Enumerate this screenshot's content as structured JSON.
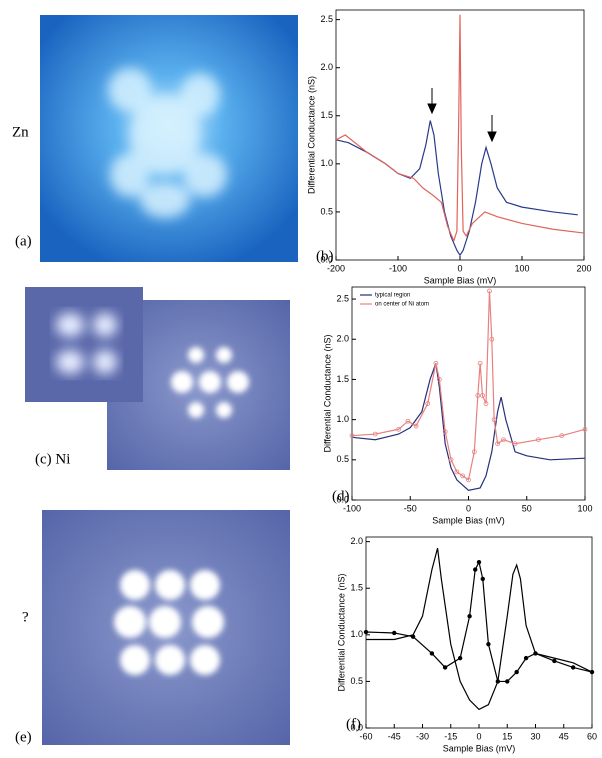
{
  "images": [
    {
      "element": "Zn",
      "label": "(a)"
    },
    {
      "label": "(c) Ni"
    },
    {
      "element": "?",
      "label": "(e)"
    }
  ],
  "chart_data": [
    {
      "type": "line",
      "annotation": "(b)",
      "x_label": "Sample Bias (mV)",
      "y_label": "Differential Conductance (nS)",
      "xlim": [
        -200,
        200
      ],
      "xticks": [
        -200,
        -100,
        0,
        100,
        200
      ],
      "ylim": [
        0,
        2.6
      ],
      "yticks": [
        {
          "value": 0,
          "label": "0.0"
        },
        0.5,
        {
          "value": 1,
          "label": "1.0"
        },
        1.5,
        {
          "value": 2,
          "label": "2.0"
        },
        2.5
      ],
      "series": [
        {
          "color": "#2a3a8a",
          "x": [
            -200,
            -180,
            -150,
            -120,
            -100,
            -80,
            -65,
            -55,
            -48,
            -42,
            -35,
            -25,
            -15,
            -5,
            0,
            5,
            15,
            25,
            35,
            42,
            50,
            60,
            75,
            100,
            150,
            190
          ],
          "values": [
            1.25,
            1.22,
            1.12,
            1.0,
            0.9,
            0.85,
            0.95,
            1.2,
            1.45,
            1.3,
            0.9,
            0.5,
            0.25,
            0.1,
            0.05,
            0.1,
            0.3,
            0.6,
            1.0,
            1.17,
            1.0,
            0.75,
            0.6,
            0.55,
            0.5,
            0.47
          ]
        },
        {
          "color": "#e0645a",
          "x": [
            -200,
            -185,
            -150,
            -120,
            -100,
            -75,
            -60,
            -45,
            -30,
            -20,
            -10,
            -5,
            -2,
            0,
            2,
            5,
            10,
            20,
            40,
            60,
            100,
            150,
            200
          ],
          "values": [
            1.25,
            1.3,
            1.12,
            1.0,
            0.9,
            0.85,
            0.75,
            0.68,
            0.6,
            0.35,
            0.2,
            0.3,
            1.5,
            2.55,
            1.2,
            0.3,
            0.25,
            0.38,
            0.5,
            0.45,
            0.38,
            0.32,
            0.28
          ]
        }
      ]
    },
    {
      "type": "line",
      "annotation": "(d)",
      "x_label": "Sample Bias (mV)",
      "y_label": "Differential Conductance (nS)",
      "legend": "upper left",
      "xlim": [
        -100,
        100
      ],
      "xticks": [
        -100,
        -50,
        0,
        50,
        100
      ],
      "ylim": [
        0,
        2.65
      ],
      "yticks": [
        {
          "value": 0,
          "label": "0.0"
        },
        0.5,
        {
          "value": 1,
          "label": "1.0"
        },
        1.5,
        {
          "value": 2,
          "label": "2.0"
        },
        2.5
      ],
      "series": [
        {
          "name": "typical region",
          "color": "#25307a",
          "x": [
            -100,
            -80,
            -60,
            -50,
            -40,
            -33,
            -28,
            -25,
            -20,
            -15,
            -10,
            0,
            10,
            15,
            20,
            25,
            28,
            32,
            40,
            50,
            70,
            100
          ],
          "values": [
            0.78,
            0.75,
            0.82,
            0.9,
            1.1,
            1.5,
            1.7,
            1.4,
            0.7,
            0.4,
            0.25,
            0.12,
            0.15,
            0.3,
            0.6,
            1.1,
            1.28,
            1.0,
            0.6,
            0.55,
            0.5,
            0.52
          ]
        },
        {
          "name": "on center of Ni atom",
          "color": "#e88080",
          "marker": "open-circle",
          "x": [
            -100,
            -80,
            -60,
            -52,
            -45,
            -35,
            -28,
            -25,
            -20,
            -15,
            -10,
            -5,
            0,
            5,
            8,
            10,
            12,
            15,
            18,
            20,
            22,
            25,
            30,
            40,
            60,
            80,
            100
          ],
          "values": [
            0.8,
            0.82,
            0.88,
            0.98,
            0.92,
            1.2,
            1.7,
            1.5,
            0.85,
            0.5,
            0.35,
            0.3,
            0.25,
            0.6,
            1.3,
            1.7,
            1.3,
            1.2,
            2.6,
            2.0,
            1.0,
            0.7,
            0.75,
            0.7,
            0.75,
            0.8,
            0.88
          ]
        }
      ]
    },
    {
      "type": "line",
      "annotation": "(f)",
      "x_label": "Sample Bias (mV)",
      "y_label": "Differential Conductance (nS)",
      "xlim": [
        -60,
        60
      ],
      "xticks": [
        -60,
        -45,
        -30,
        -15,
        0,
        15,
        30,
        45,
        60
      ],
      "ylim": [
        0,
        2.05
      ],
      "yticks": [
        {
          "value": 0,
          "label": "0.0"
        },
        0.5,
        {
          "value": 1,
          "label": "1.0"
        },
        1.5,
        {
          "value": 2,
          "label": "2.0"
        }
      ],
      "series": [
        {
          "color": "#000000",
          "x": [
            -60,
            -45,
            -35,
            -30,
            -25,
            -22,
            -20,
            -15,
            -10,
            -5,
            0,
            5,
            10,
            15,
            18,
            20,
            22,
            25,
            30,
            40,
            50,
            60
          ],
          "values": [
            0.95,
            0.95,
            1.0,
            1.2,
            1.7,
            1.93,
            1.6,
            0.9,
            0.5,
            0.3,
            0.2,
            0.25,
            0.5,
            1.2,
            1.65,
            1.75,
            1.6,
            1.1,
            0.8,
            0.75,
            0.7,
            0.6
          ]
        },
        {
          "color": "#000000",
          "marker": "circle",
          "x": [
            -60,
            -45,
            -35,
            -25,
            -18,
            -10,
            -5,
            -2,
            0,
            2,
            5,
            10,
            15,
            20,
            25,
            30,
            40,
            50,
            60
          ],
          "values": [
            1.03,
            1.02,
            0.98,
            0.8,
            0.65,
            0.75,
            1.2,
            1.7,
            1.78,
            1.6,
            0.9,
            0.5,
            0.5,
            0.6,
            0.75,
            0.8,
            0.72,
            0.65,
            0.6
          ]
        }
      ]
    }
  ]
}
